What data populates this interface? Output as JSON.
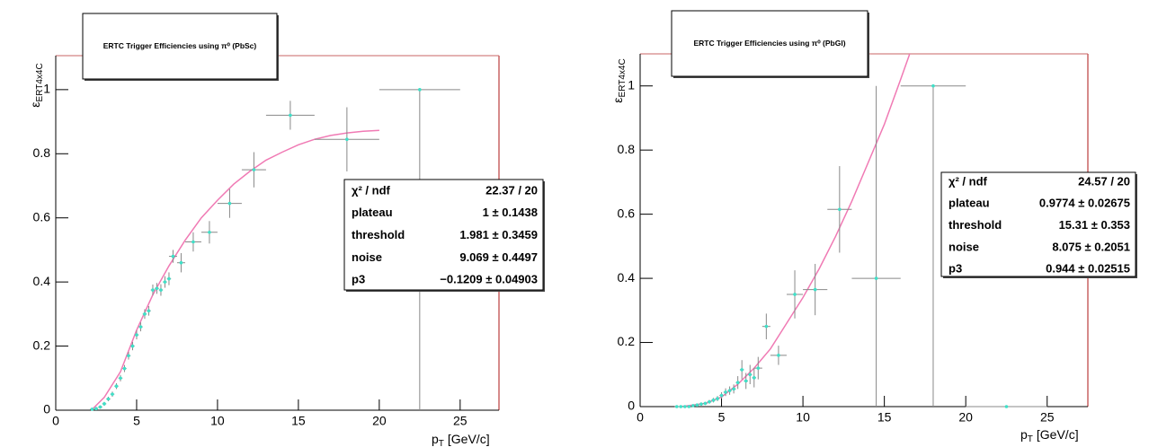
{
  "chart_data": [
    {
      "type": "scatter",
      "title": "ERTC Trigger Efficiencies using π⁰ (PbSc)",
      "x_label": {
        "text": "p",
        "sub": "T",
        "unit": "[GeV/c]"
      },
      "y_label": {
        "text": "ε",
        "sub": "ERT4x4C"
      },
      "xlim": [
        0,
        27.4
      ],
      "ylim": [
        0,
        1.106
      ],
      "xticks": [
        0,
        5,
        10,
        15,
        20,
        25
      ],
      "yticks": [
        0,
        0.2,
        0.4,
        0.6,
        0.8,
        1
      ],
      "color": "#3fe0c8",
      "error_color": "#888888",
      "frame_color": "#c86464",
      "x": [
        2.25,
        2.5,
        2.75,
        3.0,
        3.25,
        3.5,
        3.75,
        4.0,
        4.25,
        4.5,
        4.75,
        5.0,
        5.25,
        5.5,
        5.75,
        6.0,
        6.25,
        6.5,
        6.75,
        7.0,
        7.25,
        7.75,
        8.5,
        9.5,
        10.75,
        12.25,
        14.5,
        18,
        22.5
      ],
      "values": [
        0.003,
        0.005,
        0.01,
        0.02,
        0.035,
        0.05,
        0.075,
        0.1,
        0.13,
        0.17,
        0.2,
        0.235,
        0.26,
        0.3,
        0.31,
        0.375,
        0.38,
        0.375,
        0.4,
        0.41,
        0.48,
        0.46,
        0.525,
        0.555,
        0.645,
        0.75,
        0.92,
        0.845,
        1.0
      ],
      "xerr": [
        0.125,
        0.125,
        0.125,
        0.125,
        0.125,
        0.125,
        0.125,
        0.125,
        0.125,
        0.125,
        0.125,
        0.125,
        0.125,
        0.125,
        0.125,
        0.125,
        0.125,
        0.125,
        0.125,
        0.125,
        0.25,
        0.25,
        0.5,
        0.5,
        0.75,
        0.75,
        1.5,
        2,
        2.5
      ],
      "yerr_low": [
        0.003,
        0.004,
        0.005,
        0.006,
        0.007,
        0.008,
        0.009,
        0.01,
        0.011,
        0.012,
        0.013,
        0.014,
        0.014,
        0.015,
        0.015,
        0.017,
        0.017,
        0.018,
        0.018,
        0.02,
        0.02,
        0.03,
        0.03,
        0.035,
        0.045,
        0.055,
        0.045,
        0.1,
        1.0
      ],
      "yerr_high": [
        0.003,
        0.004,
        0.005,
        0.006,
        0.007,
        0.008,
        0.009,
        0.01,
        0.011,
        0.012,
        0.013,
        0.014,
        0.014,
        0.015,
        0.015,
        0.017,
        0.017,
        0.018,
        0.018,
        0.02,
        0.02,
        0.03,
        0.03,
        0.035,
        0.045,
        0.055,
        0.045,
        0.1,
        0
      ],
      "fit": {
        "color": "#f07ab4",
        "x": [
          2.2,
          3,
          4,
          5,
          6,
          7,
          8,
          9,
          10,
          11,
          12,
          13,
          14,
          15,
          16,
          17,
          18,
          19,
          20
        ],
        "values": [
          0,
          0.04,
          0.12,
          0.25,
          0.36,
          0.45,
          0.53,
          0.6,
          0.655,
          0.705,
          0.745,
          0.78,
          0.805,
          0.828,
          0.845,
          0.857,
          0.865,
          0.87,
          0.873
        ]
      },
      "stats": {
        "rows": [
          [
            "χ² / ndf",
            "22.37 / 20"
          ],
          [
            "plateau",
            "1 ± 0.1438"
          ],
          [
            "threshold",
            "1.981 ± 0.3459"
          ],
          [
            "noise",
            "9.069 ± 0.4497"
          ],
          [
            "p3",
            "−0.1209 ± 0.04903"
          ]
        ]
      }
    },
    {
      "type": "scatter",
      "title": "ERTC Trigger Efficiencies using π⁰ (PbGl)",
      "x_label": {
        "text": "p",
        "sub": "T",
        "unit": "[GeV/c]"
      },
      "y_label": {
        "text": "ε",
        "sub": "ERT4x4C"
      },
      "xlim": [
        0,
        27.5
      ],
      "ylim": [
        0,
        1.1
      ],
      "xticks": [
        0,
        5,
        10,
        15,
        20,
        25
      ],
      "yticks": [
        0,
        0.2,
        0.4,
        0.6,
        0.8,
        1
      ],
      "color": "#3fe0c8",
      "error_color": "#888888",
      "frame_color": "#c86464",
      "x": [
        2.25,
        2.5,
        2.75,
        3.0,
        3.25,
        3.5,
        3.75,
        4.0,
        4.25,
        4.5,
        4.75,
        5.0,
        5.25,
        5.5,
        5.75,
        6.0,
        6.25,
        6.5,
        6.75,
        7.0,
        7.25,
        7.75,
        8.5,
        9.5,
        10.75,
        12.25,
        14.5,
        18,
        22.5
      ],
      "values": [
        0,
        0,
        0,
        0,
        0.003,
        0.005,
        0.008,
        0.01,
        0.015,
        0.02,
        0.025,
        0.035,
        0.045,
        0.05,
        0.055,
        0.075,
        0.115,
        0.08,
        0.1,
        0.09,
        0.12,
        0.25,
        0.16,
        0.35,
        0.365,
        0.615,
        0.4,
        1.0,
        0
      ],
      "xerr": [
        0.125,
        0.125,
        0.125,
        0.125,
        0.125,
        0.125,
        0.125,
        0.125,
        0.125,
        0.125,
        0.125,
        0.125,
        0.125,
        0.125,
        0.125,
        0.125,
        0.125,
        0.125,
        0.125,
        0.125,
        0.25,
        0.25,
        0.5,
        0.5,
        0.75,
        0.75,
        1.5,
        2,
        2.5
      ],
      "yerr_low": [
        0,
        0,
        0,
        0,
        0.003,
        0.004,
        0.005,
        0.005,
        0.006,
        0.007,
        0.008,
        0.01,
        0.012,
        0.013,
        0.014,
        0.02,
        0.03,
        0.025,
        0.03,
        0.03,
        0.035,
        0.04,
        0.03,
        0.075,
        0.08,
        0.135,
        0.4,
        1.0,
        0
      ],
      "yerr_high": [
        0,
        0,
        0,
        0,
        0.003,
        0.004,
        0.005,
        0.005,
        0.006,
        0.007,
        0.008,
        0.01,
        0.012,
        0.013,
        0.014,
        0.02,
        0.03,
        0.025,
        0.03,
        0.03,
        0.035,
        0.04,
        0.03,
        0.075,
        0.08,
        0.135,
        0.6,
        0,
        0
      ],
      "fit": {
        "color": "#f07ab4",
        "x": [
          2.5,
          4,
          5,
          6,
          7,
          8,
          9,
          10,
          11,
          12,
          13,
          14,
          15,
          16,
          16.6
        ],
        "values": [
          0,
          0.01,
          0.03,
          0.07,
          0.12,
          0.18,
          0.26,
          0.34,
          0.43,
          0.53,
          0.64,
          0.76,
          0.88,
          1.02,
          1.106
        ]
      },
      "stats": {
        "rows": [
          [
            "χ² / ndf",
            "24.57 / 20"
          ],
          [
            "plateau",
            "0.9774 ± 0.02675"
          ],
          [
            "threshold",
            "15.31 ± 0.353"
          ],
          [
            "noise",
            "8.075 ± 0.2051"
          ],
          [
            "p3",
            "0.944 ± 0.02515"
          ]
        ]
      }
    }
  ]
}
